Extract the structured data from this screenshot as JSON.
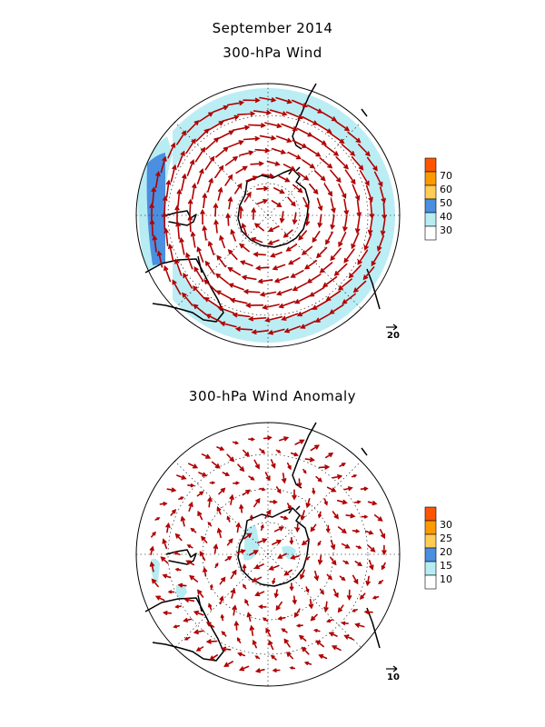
{
  "header": {
    "title": "September 2014"
  },
  "panels": [
    {
      "title": "300-hPa Wind",
      "legend": {
        "labels": [
          "70",
          "60",
          "50",
          "40",
          "30"
        ],
        "colors": [
          "#ff5500",
          "#ff9900",
          "#ffcc55",
          "#4a8fe0",
          "#b7ecf3",
          "#ffffff"
        ]
      },
      "reference_vector": "20"
    },
    {
      "title": "300-hPa Wind Anomaly",
      "legend": {
        "labels": [
          "30",
          "25",
          "20",
          "15",
          "10"
        ],
        "colors": [
          "#ff5500",
          "#ff9900",
          "#ffcc55",
          "#4a8fe0",
          "#b7ecf3",
          "#ffffff"
        ]
      },
      "reference_vector": "10"
    }
  ],
  "colors": {
    "vector": "#b00000",
    "coast": "#000000",
    "grid": "#000000"
  }
}
